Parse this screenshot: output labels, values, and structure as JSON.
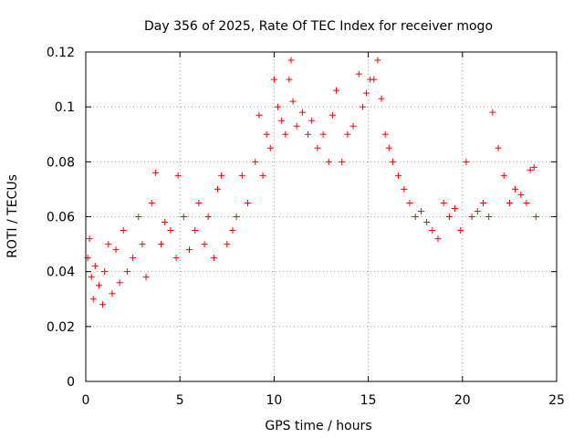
{
  "chart_data": {
    "type": "scatter",
    "title": "Day 356 of 2025, Rate Of TEC Index for receiver mogo",
    "xlabel": "GPS time / hours",
    "ylabel": "ROTI / TECUs",
    "xlim": [
      0,
      25
    ],
    "ylim": [
      0,
      0.12
    ],
    "xticks": [
      0,
      5,
      10,
      15,
      20,
      25
    ],
    "xtick_labels": [
      "0",
      "5",
      "10",
      "15",
      "20",
      "25"
    ],
    "yticks": [
      0,
      0.02,
      0.04,
      0.06,
      0.08,
      0.1,
      0.12
    ],
    "ytick_labels": [
      "0",
      "0.02",
      "0.04",
      "0.06",
      "0.08",
      "0.1",
      "0.12"
    ],
    "grid": true,
    "marker": "plus",
    "color": "#ff0000",
    "series": [
      {
        "name": "ROTI",
        "x": [
          0.1,
          0.2,
          0.3,
          0.4,
          0.5,
          0.7,
          0.9,
          1.0,
          1.2,
          1.4,
          1.6,
          1.8,
          2.0,
          2.2,
          2.5,
          2.8,
          3.0,
          3.2,
          3.5,
          3.7,
          4.0,
          4.2,
          4.5,
          4.8,
          4.9,
          5.2,
          5.5,
          5.8,
          6.0,
          6.3,
          6.5,
          6.8,
          7.0,
          7.2,
          7.5,
          7.8,
          8.0,
          8.3,
          8.6,
          9.0,
          9.2,
          9.4,
          9.6,
          9.8,
          10.0,
          10.2,
          10.4,
          10.6,
          10.8,
          10.9,
          11.0,
          11.2,
          11.5,
          11.8,
          12.0,
          12.3,
          12.6,
          12.9,
          13.1,
          13.3,
          13.6,
          13.9,
          14.2,
          14.5,
          14.7,
          14.9,
          15.1,
          15.3,
          15.5,
          15.7,
          15.9,
          16.1,
          16.3,
          16.6,
          16.9,
          17.2,
          17.5,
          17.8,
          18.1,
          18.4,
          18.7,
          19.0,
          19.3,
          19.6,
          19.9,
          20.2,
          20.5,
          20.8,
          21.1,
          21.4,
          21.6,
          21.9,
          22.2,
          22.5,
          22.8,
          23.1,
          23.4,
          23.6,
          23.8,
          23.9
        ],
        "y": [
          0.045,
          0.052,
          0.038,
          0.03,
          0.042,
          0.035,
          0.028,
          0.04,
          0.05,
          0.032,
          0.048,
          0.036,
          0.055,
          0.04,
          0.045,
          0.06,
          0.05,
          0.038,
          0.065,
          0.076,
          0.05,
          0.058,
          0.055,
          0.045,
          0.075,
          0.06,
          0.048,
          0.055,
          0.065,
          0.05,
          0.06,
          0.045,
          0.07,
          0.075,
          0.05,
          0.055,
          0.06,
          0.075,
          0.065,
          0.08,
          0.097,
          0.075,
          0.09,
          0.085,
          0.11,
          0.1,
          0.095,
          0.09,
          0.11,
          0.117,
          0.102,
          0.093,
          0.098,
          0.09,
          0.095,
          0.085,
          0.09,
          0.08,
          0.097,
          0.106,
          0.08,
          0.09,
          0.093,
          0.112,
          0.1,
          0.105,
          0.11,
          0.11,
          0.117,
          0.103,
          0.09,
          0.085,
          0.08,
          0.075,
          0.07,
          0.065,
          0.06,
          0.062,
          0.058,
          0.055,
          0.052,
          0.065,
          0.06,
          0.063,
          0.055,
          0.08,
          0.06,
          0.062,
          0.065,
          0.06,
          0.098,
          0.085,
          0.075,
          0.065,
          0.07,
          0.068,
          0.065,
          0.077,
          0.078,
          0.06
        ]
      }
    ]
  }
}
